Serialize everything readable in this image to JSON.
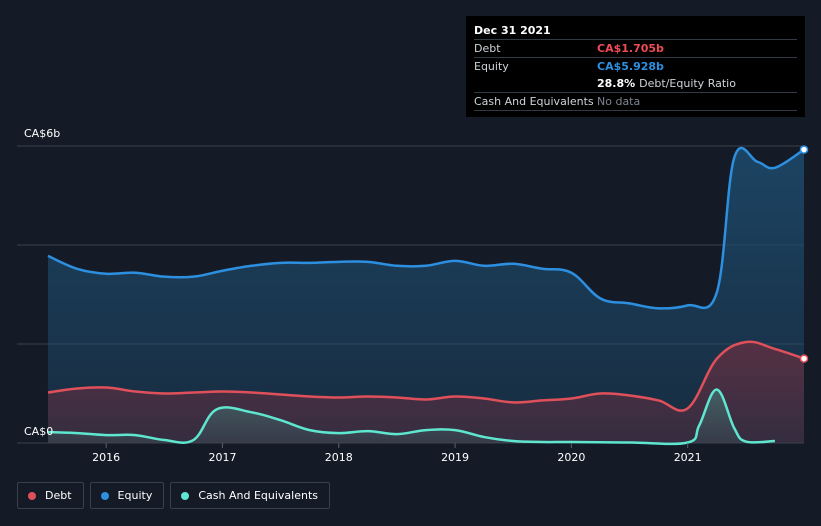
{
  "tooltip": {
    "date": "Dec 31 2021",
    "debt_label": "Debt",
    "debt_value": "CA$1.705b",
    "equity_label": "Equity",
    "equity_value": "CA$5.928b",
    "ratio_value": "28.8%",
    "ratio_label": "Debt/Equity Ratio",
    "cash_label": "Cash And Equivalents",
    "cash_value": "No data"
  },
  "legend": [
    {
      "label": "Debt",
      "color": "#e0505a"
    },
    {
      "label": "Equity",
      "color": "#2d8fdf"
    },
    {
      "label": "Cash And Equivalents",
      "color": "#5ee6cf"
    }
  ],
  "colors": {
    "debt": "#e0505a",
    "equity": "#2d8fdf",
    "cash": "#5ee6cf",
    "debt_value_text": "#ee4b55",
    "equity_value_text": "#2d8fdf"
  },
  "chart_data": {
    "type": "area",
    "y_unit": "CA$ billions",
    "ylim": [
      0,
      6
    ],
    "xlim": [
      2015.5,
      2022.0
    ],
    "y_tick_labels": [
      {
        "value": 6,
        "label": "CA$6b"
      },
      {
        "value": 0,
        "label": "CA$0"
      }
    ],
    "x_ticks": [
      {
        "value": 2016,
        "label": "2016"
      },
      {
        "value": 2017,
        "label": "2017"
      },
      {
        "value": 2018,
        "label": "2018"
      },
      {
        "value": 2019,
        "label": "2019"
      },
      {
        "value": 2020,
        "label": "2020"
      },
      {
        "value": 2021,
        "label": "2021"
      }
    ],
    "grid": true,
    "legend_position": "bottom-left",
    "series": [
      {
        "name": "Equity",
        "points": [
          [
            2015.5,
            3.78
          ],
          [
            2015.75,
            3.52
          ],
          [
            2016.0,
            3.42
          ],
          [
            2016.25,
            3.44
          ],
          [
            2016.5,
            3.36
          ],
          [
            2016.75,
            3.36
          ],
          [
            2017.0,
            3.48
          ],
          [
            2017.25,
            3.58
          ],
          [
            2017.5,
            3.64
          ],
          [
            2017.75,
            3.64
          ],
          [
            2018.0,
            3.66
          ],
          [
            2018.25,
            3.66
          ],
          [
            2018.5,
            3.58
          ],
          [
            2018.75,
            3.58
          ],
          [
            2019.0,
            3.68
          ],
          [
            2019.25,
            3.58
          ],
          [
            2019.5,
            3.62
          ],
          [
            2019.75,
            3.52
          ],
          [
            2020.0,
            3.44
          ],
          [
            2020.25,
            2.92
          ],
          [
            2020.5,
            2.82
          ],
          [
            2020.75,
            2.72
          ],
          [
            2021.0,
            2.78
          ],
          [
            2021.25,
            3.04
          ],
          [
            2021.4,
            5.76
          ],
          [
            2021.6,
            5.68
          ],
          [
            2021.75,
            5.56
          ],
          [
            2022.0,
            5.928
          ]
        ]
      },
      {
        "name": "Debt",
        "points": [
          [
            2015.5,
            1.02
          ],
          [
            2015.75,
            1.1
          ],
          [
            2016.0,
            1.12
          ],
          [
            2016.25,
            1.04
          ],
          [
            2016.5,
            1.0
          ],
          [
            2016.75,
            1.02
          ],
          [
            2017.0,
            1.04
          ],
          [
            2017.25,
            1.02
          ],
          [
            2017.5,
            0.98
          ],
          [
            2017.75,
            0.94
          ],
          [
            2018.0,
            0.92
          ],
          [
            2018.25,
            0.94
          ],
          [
            2018.5,
            0.92
          ],
          [
            2018.75,
            0.88
          ],
          [
            2019.0,
            0.94
          ],
          [
            2019.25,
            0.9
          ],
          [
            2019.5,
            0.82
          ],
          [
            2019.75,
            0.86
          ],
          [
            2020.0,
            0.9
          ],
          [
            2020.25,
            1.0
          ],
          [
            2020.5,
            0.96
          ],
          [
            2020.75,
            0.86
          ],
          [
            2021.0,
            0.7
          ],
          [
            2021.25,
            1.7
          ],
          [
            2021.5,
            2.04
          ],
          [
            2021.75,
            1.9
          ],
          [
            2022.0,
            1.705
          ]
        ]
      },
      {
        "name": "Cash And Equivalents",
        "points": [
          [
            2015.5,
            0.22
          ],
          [
            2015.75,
            0.2
          ],
          [
            2016.0,
            0.16
          ],
          [
            2016.25,
            0.16
          ],
          [
            2016.5,
            0.06
          ],
          [
            2016.75,
            0.06
          ],
          [
            2016.95,
            0.68
          ],
          [
            2017.25,
            0.62
          ],
          [
            2017.5,
            0.46
          ],
          [
            2017.75,
            0.26
          ],
          [
            2018.0,
            0.2
          ],
          [
            2018.25,
            0.24
          ],
          [
            2018.5,
            0.18
          ],
          [
            2018.75,
            0.26
          ],
          [
            2019.0,
            0.26
          ],
          [
            2019.25,
            0.12
          ],
          [
            2019.5,
            0.04
          ],
          [
            2019.75,
            0.02
          ],
          [
            2020.0,
            0.02
          ],
          [
            2020.5,
            0.01
          ],
          [
            2021.0,
            0.01
          ],
          [
            2021.1,
            0.36
          ],
          [
            2021.25,
            1.08
          ],
          [
            2021.4,
            0.3
          ],
          [
            2021.5,
            0.03
          ],
          [
            2021.75,
            0.04
          ]
        ]
      }
    ]
  }
}
